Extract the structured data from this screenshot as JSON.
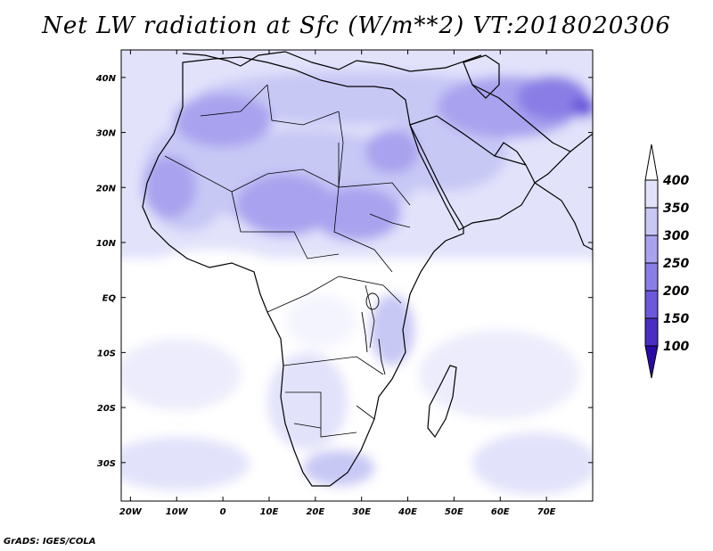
{
  "title": "Net LW radiation at Sfc (W/m**2) VT:2018020306",
  "credit": "GrADS: IGES/COLA",
  "map": {
    "lat_labels": [
      "40N",
      "30N",
      "20N",
      "10N",
      "EQ",
      "10S",
      "20S",
      "30S"
    ],
    "lon_labels": [
      "20W",
      "10W",
      "0",
      "10E",
      "20E",
      "30E",
      "40E",
      "50E",
      "60E",
      "70E"
    ],
    "lon_range": [
      -22,
      80
    ],
    "lat_range": [
      -37,
      45
    ]
  },
  "colorbar": {
    "labels": [
      "400",
      "350",
      "300",
      "250",
      "200",
      "150",
      "100"
    ],
    "colors": [
      "#ffffff",
      "#e2e2fb",
      "#c8c8f5",
      "#a9a3ef",
      "#8a7ee6",
      "#6c58dc",
      "#4a2ec4",
      "#2a0aa6"
    ]
  },
  "chart_data": {
    "type": "heatmap",
    "title": "Net LW radiation at Sfc (W/m**2) VT:2018020306",
    "xlabel": "",
    "ylabel": "",
    "x_ticks": [
      "20W",
      "10W",
      "0",
      "10E",
      "20E",
      "30E",
      "40E",
      "50E",
      "60E",
      "70E"
    ],
    "y_ticks": [
      "40N",
      "30N",
      "20N",
      "10N",
      "EQ",
      "10S",
      "20S",
      "30S"
    ],
    "color_levels": [
      100,
      150,
      200,
      250,
      300,
      350,
      400
    ]
  }
}
